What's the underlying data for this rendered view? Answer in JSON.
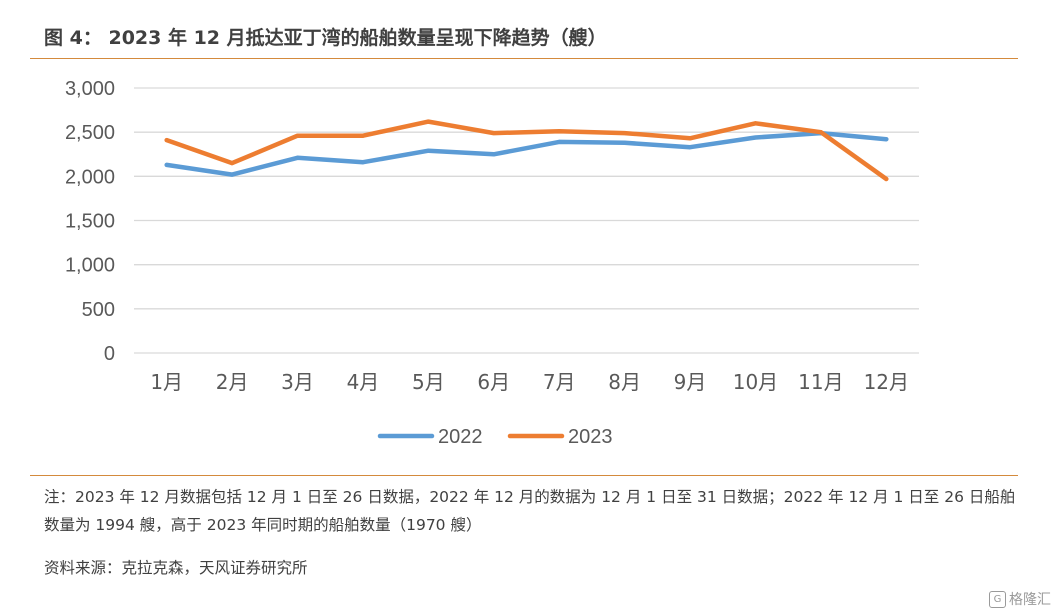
{
  "figure": {
    "label": "图 4：",
    "title": "2023 年 12 月抵达亚丁湾的船舶数量呈现下降趋势（艘）"
  },
  "chart_data": {
    "type": "line",
    "categories": [
      "1月",
      "2月",
      "3月",
      "4月",
      "5月",
      "6月",
      "7月",
      "8月",
      "9月",
      "10月",
      "11月",
      "12月"
    ],
    "series": [
      {
        "name": "2022",
        "color": "#5b9bd5",
        "values": [
          2130,
          2020,
          2210,
          2160,
          2290,
          2250,
          2390,
          2380,
          2330,
          2440,
          2490,
          2420
        ]
      },
      {
        "name": "2023",
        "color": "#ed7d31",
        "values": [
          2410,
          2150,
          2460,
          2460,
          2620,
          2490,
          2510,
          2490,
          2430,
          2600,
          2500,
          1970
        ]
      }
    ],
    "ylim": [
      0,
      3000
    ],
    "yticks": [
      "0",
      "500",
      "1,000",
      "1,500",
      "2,000",
      "2,500",
      "3,000"
    ],
    "ytick_values": [
      0,
      500,
      1000,
      1500,
      2000,
      2500,
      3000
    ],
    "grid": true,
    "legend_position": "bottom"
  },
  "notes": {
    "line1": "注：2023 年 12 月数据包括 12 月 1 日至 26 日数据，2022 年 12 月的数据为 12 月 1 日至 31 日数据；2022 年 12 月 1 日至 26 日船舶数量为 1994 艘，高于 2023 年同时期的船舶数量（1970 艘）",
    "source": "资料来源：克拉克森，天风证券研究所"
  },
  "watermark": {
    "logo": "G",
    "text": "格隆汇"
  }
}
